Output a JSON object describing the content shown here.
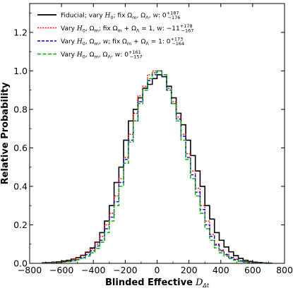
{
  "chart_data": {
    "type": "line",
    "style": "step-histogram",
    "xlabel_bold": "Blinded Effective",
    "xlabel_symbol": "D",
    "xlabel_sub": "Δt",
    "ylabel": "Relative Probability",
    "xlim": [
      -800,
      800
    ],
    "ylim": [
      0,
      1.35
    ],
    "x_ticks": [
      "−800",
      "−600",
      "−400",
      "−200",
      "0",
      "200",
      "400",
      "600",
      "800"
    ],
    "y_ticks": [
      "0.0",
      "0.2",
      "0.4",
      "0.6",
      "0.8",
      "1.0",
      "1.2"
    ],
    "legend_position": "upper-left",
    "bin_edges": [
      -720,
      -690,
      -660,
      -630,
      -600,
      -570,
      -540,
      -510,
      -480,
      -450,
      -420,
      -390,
      -360,
      -330,
      -300,
      -270,
      -240,
      -210,
      -180,
      -150,
      -120,
      -90,
      -60,
      -30,
      0,
      30,
      60,
      90,
      120,
      150,
      180,
      210,
      240,
      270,
      300,
      330,
      360,
      390,
      420,
      450,
      480,
      510,
      540,
      570,
      600,
      630,
      660,
      690,
      720
    ],
    "series": [
      {
        "legend": "Fiducial; vary H0; fix Ωm, ΩΛ, w: 0 +187 −176",
        "color": "#000000",
        "dash": "none",
        "legend_parts": [
          {
            "t": "Fiducial; vary "
          },
          {
            "t": "H",
            "i": true
          },
          {
            "t": "0",
            "sub": true
          },
          {
            "t": "; fix Ω"
          },
          {
            "t": "m",
            "sub": true
          },
          {
            "t": ", Ω"
          },
          {
            "t": "Λ",
            "sub": true
          },
          {
            "t": ", "
          },
          {
            "t": "w",
            "i": true
          },
          {
            "t": ": 0"
          },
          {
            "t": "+187",
            "sup": true
          },
          {
            "t": "−176",
            "sub": true
          }
        ],
        "values": [
          0.003,
          0.004,
          0.006,
          0.008,
          0.012,
          0.016,
          0.022,
          0.03,
          0.042,
          0.058,
          0.08,
          0.11,
          0.16,
          0.22,
          0.3,
          0.42,
          0.5,
          0.64,
          0.74,
          0.8,
          0.86,
          0.91,
          0.93,
          0.96,
          0.98,
          0.97,
          0.92,
          0.86,
          0.78,
          0.72,
          0.64,
          0.56,
          0.48,
          0.4,
          0.3,
          0.23,
          0.16,
          0.12,
          0.085,
          0.06,
          0.04,
          0.026,
          0.016,
          0.01,
          0.006,
          0.004,
          0.002,
          0.001
        ]
      },
      {
        "legend": "Vary H0, Ωm; fix Ωm + ΩΛ = 1, w: −11 +178 −167",
        "color": "#ff0000",
        "dash": "2,1.6",
        "legend_parts": [
          {
            "t": "Vary "
          },
          {
            "t": "H",
            "i": true
          },
          {
            "t": "0",
            "sub": true
          },
          {
            "t": ", Ω"
          },
          {
            "t": "m",
            "sub": true
          },
          {
            "t": "; fix Ω"
          },
          {
            "t": "m",
            "sub": true
          },
          {
            "t": " + Ω"
          },
          {
            "t": "Λ",
            "sub": true
          },
          {
            "t": " = 1, "
          },
          {
            "t": "w",
            "i": true
          },
          {
            "t": ": −11"
          },
          {
            "t": "+178",
            "sup": true
          },
          {
            "t": "−167",
            "sub": true
          }
        ],
        "values": [
          0.002,
          0.003,
          0.005,
          0.007,
          0.01,
          0.014,
          0.02,
          0.028,
          0.04,
          0.055,
          0.075,
          0.1,
          0.14,
          0.2,
          0.26,
          0.35,
          0.44,
          0.55,
          0.67,
          0.78,
          0.87,
          0.92,
          0.98,
          1.0,
          1.0,
          0.98,
          0.91,
          0.84,
          0.76,
          0.67,
          0.57,
          0.48,
          0.39,
          0.3,
          0.22,
          0.15,
          0.1,
          0.07,
          0.048,
          0.032,
          0.022,
          0.014,
          0.009,
          0.006,
          0.004,
          0.002,
          0.001,
          0.001
        ]
      },
      {
        "legend": "Vary H0, Ωm, w; fix Ωm + ΩΛ = 1: 0 +173 −164",
        "color": "#0000cc",
        "dash": "4,2",
        "legend_parts": [
          {
            "t": "Vary "
          },
          {
            "t": "H",
            "i": true
          },
          {
            "t": "0",
            "sub": true
          },
          {
            "t": ", Ω"
          },
          {
            "t": "m",
            "sub": true
          },
          {
            "t": ", "
          },
          {
            "t": "w",
            "i": true
          },
          {
            "t": "; fix Ω"
          },
          {
            "t": "m",
            "sub": true
          },
          {
            "t": " + Ω"
          },
          {
            "t": "Λ",
            "sub": true
          },
          {
            "t": " = 1: 0"
          },
          {
            "t": "+173",
            "sup": true
          },
          {
            "t": "−164",
            "sub": true
          }
        ],
        "values": [
          0.001,
          0.002,
          0.003,
          0.005,
          0.007,
          0.01,
          0.014,
          0.02,
          0.03,
          0.045,
          0.065,
          0.09,
          0.12,
          0.18,
          0.24,
          0.32,
          0.42,
          0.54,
          0.64,
          0.74,
          0.84,
          0.9,
          0.95,
          0.98,
          1.0,
          0.97,
          0.9,
          0.83,
          0.75,
          0.66,
          0.55,
          0.46,
          0.37,
          0.28,
          0.2,
          0.14,
          0.095,
          0.065,
          0.045,
          0.03,
          0.02,
          0.012,
          0.008,
          0.005,
          0.003,
          0.002,
          0.001,
          0.001
        ]
      },
      {
        "legend": "Vary H0, Ωm, ΩΛ, w: 0 +161 −157",
        "color": "#00aa00",
        "dash": "5,2.5",
        "legend_parts": [
          {
            "t": "Vary "
          },
          {
            "t": "H",
            "i": true
          },
          {
            "t": "0",
            "sub": true
          },
          {
            "t": ", Ω"
          },
          {
            "t": "m",
            "sub": true
          },
          {
            "t": ", Ω"
          },
          {
            "t": "Λ",
            "sub": true
          },
          {
            "t": ", "
          },
          {
            "t": "w",
            "i": true
          },
          {
            "t": ": 0"
          },
          {
            "t": "+161",
            "sup": true
          },
          {
            "t": "−157",
            "sub": true
          }
        ],
        "values": [
          0.001,
          0.002,
          0.003,
          0.004,
          0.006,
          0.009,
          0.013,
          0.018,
          0.026,
          0.038,
          0.055,
          0.078,
          0.11,
          0.16,
          0.22,
          0.3,
          0.4,
          0.52,
          0.63,
          0.74,
          0.83,
          0.9,
          0.96,
          0.99,
          1.0,
          0.98,
          0.91,
          0.83,
          0.74,
          0.64,
          0.54,
          0.44,
          0.35,
          0.26,
          0.18,
          0.12,
          0.08,
          0.055,
          0.038,
          0.025,
          0.016,
          0.01,
          0.006,
          0.004,
          0.002,
          0.001,
          0.001,
          0.0
        ]
      }
    ]
  }
}
